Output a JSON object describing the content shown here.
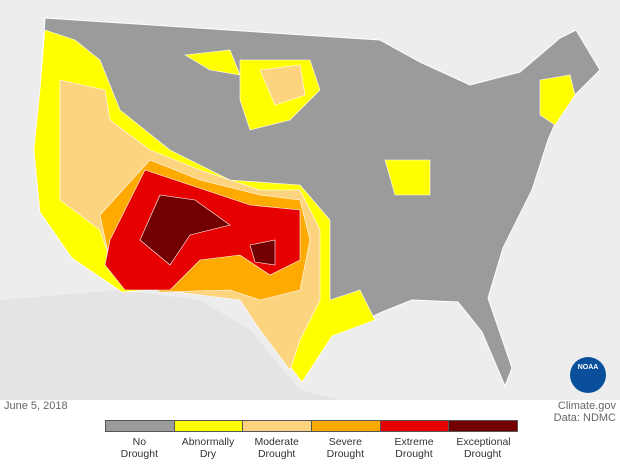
{
  "date": "June 5, 2018",
  "credit": {
    "source": "Climate.gov",
    "data": "Data: NDMC"
  },
  "logo": "NOAA",
  "legend": [
    {
      "label": "No Drought",
      "color": "#9b9b9b"
    },
    {
      "label": "Abnormally Dry",
      "color": "#ffff00"
    },
    {
      "label": "Moderate Drought",
      "color": "#fcd37f"
    },
    {
      "label": "Severe Drought",
      "color": "#ffaa00"
    },
    {
      "label": "Extreme Drought",
      "color": "#e60000"
    },
    {
      "label": "Exceptional Drought",
      "color": "#730000"
    }
  ]
}
